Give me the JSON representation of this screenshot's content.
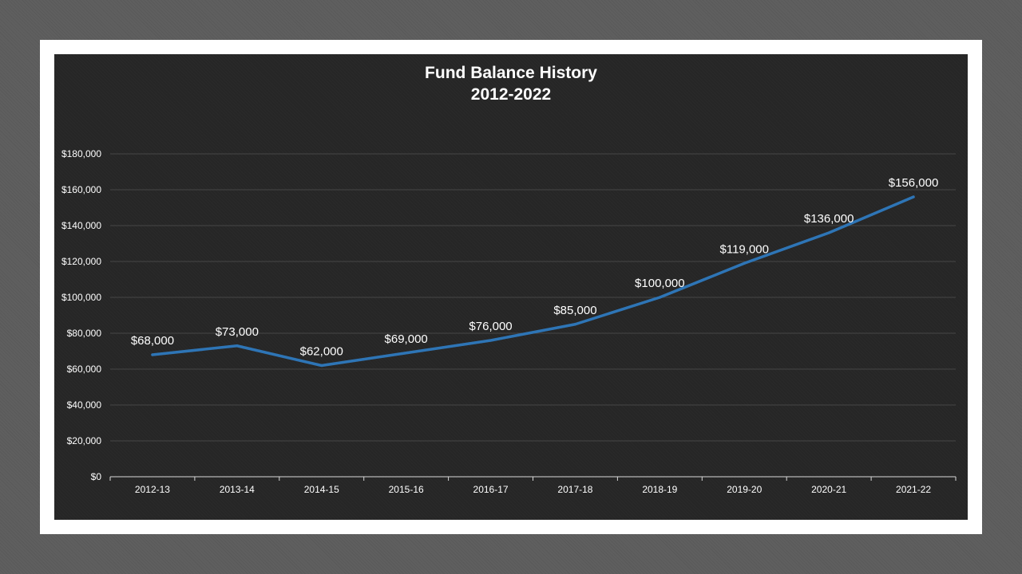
{
  "chart_data": {
    "type": "line",
    "title": "Fund Balance History",
    "subtitle": "2012-2022",
    "categories": [
      "2012-13",
      "2013-14",
      "2014-15",
      "2015-16",
      "2016-17",
      "2017-18",
      "2018-19",
      "2019-20",
      "2020-21",
      "2021-22"
    ],
    "series": [
      {
        "values": [
          68000,
          73000,
          62000,
          69000,
          76000,
          85000,
          100000,
          119000,
          136000,
          156000
        ],
        "data_labels": [
          "$68,000",
          "$73,000",
          "$62,000",
          "$69,000",
          "$76,000",
          "$85,000",
          "$100,000",
          "$119,000",
          "$136,000",
          "$156,000"
        ],
        "color": "#2e75b6"
      }
    ],
    "y_ticks": [
      "$0",
      "$20,000",
      "$40,000",
      "$60,000",
      "$80,000",
      "$100,000",
      "$120,000",
      "$140,000",
      "$160,000",
      "$180,000"
    ],
    "ylim": [
      0,
      180000
    ],
    "grid": true,
    "legend": "none",
    "xlabel": "",
    "ylabel": ""
  },
  "colors": {
    "page_background": "#5f5f5f",
    "frame": "#ffffff",
    "chart_background": "#262626",
    "line": "#2e75b6",
    "gridline": "#464646",
    "text": "#ffffff"
  }
}
